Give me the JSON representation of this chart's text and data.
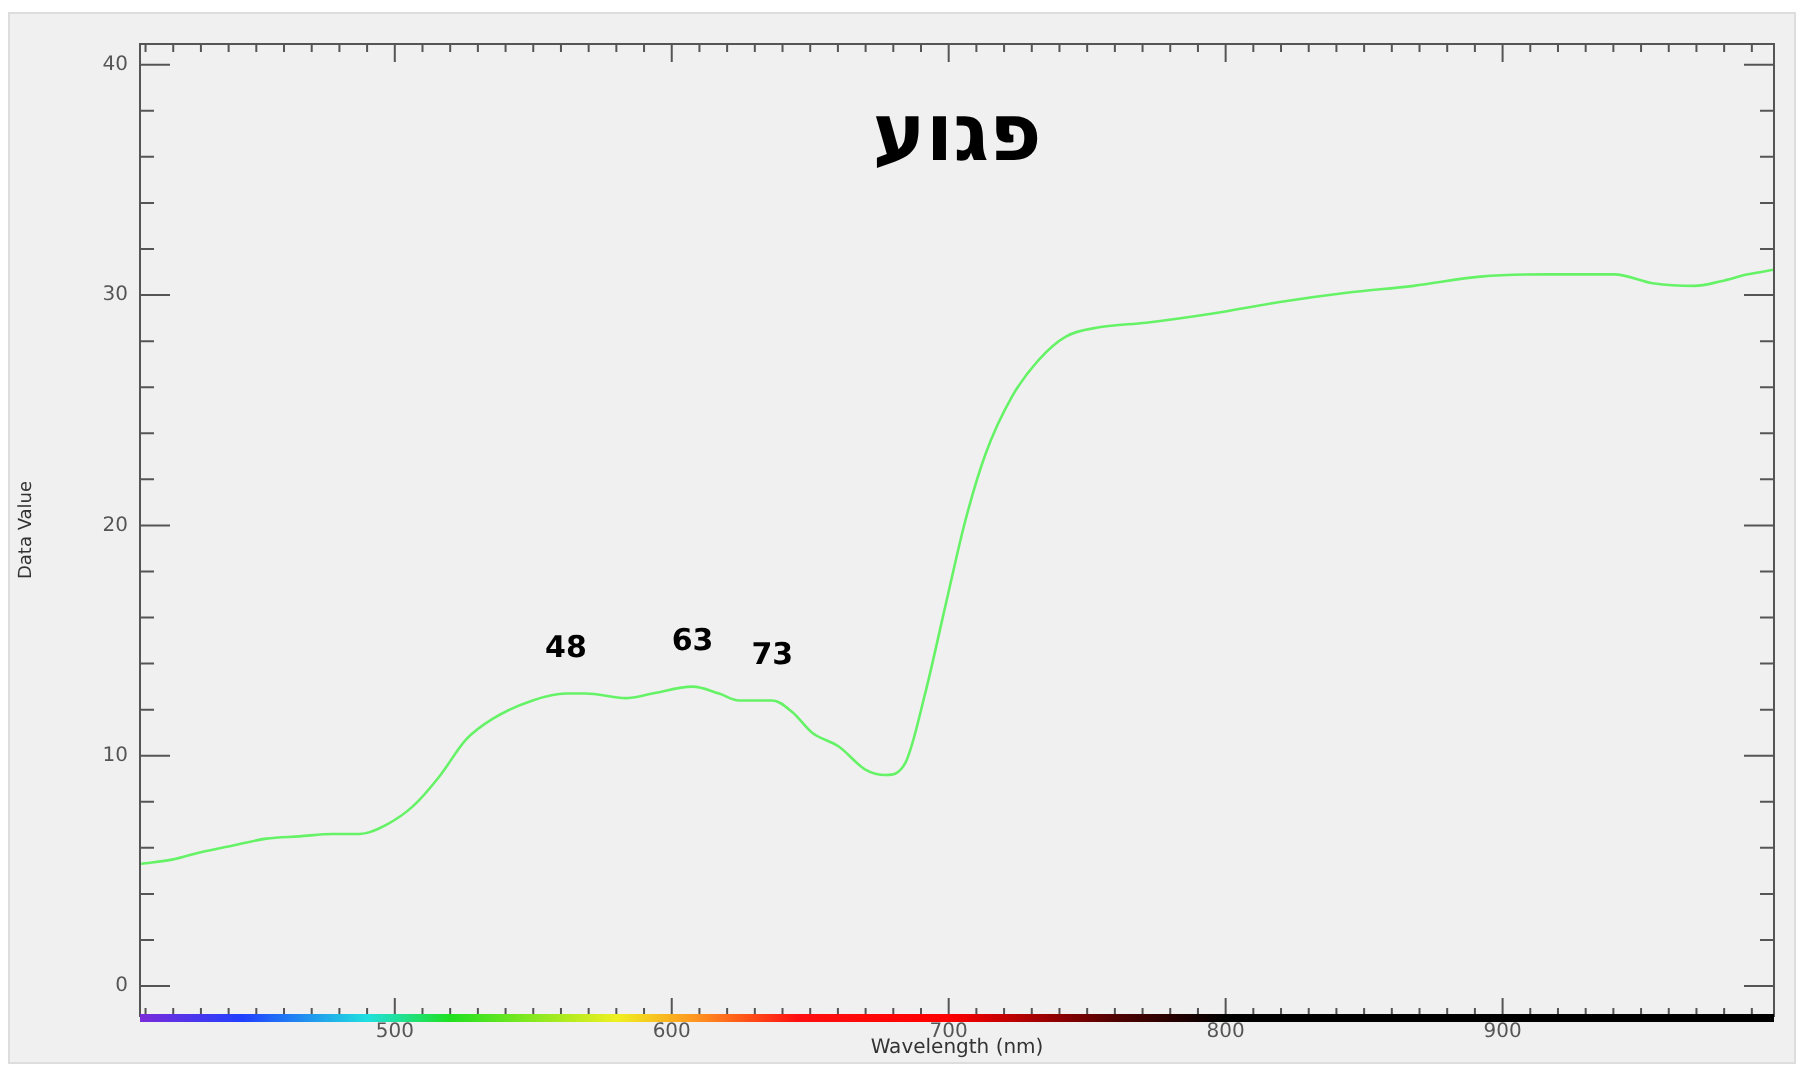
{
  "chart_data": {
    "type": "line",
    "title": "פגוע",
    "xlabel": "Wavelength (nm)",
    "ylabel": "Data Value",
    "x": [
      408.4,
      420,
      429.6,
      441.6,
      453.6,
      465.6,
      477.6,
      487.3,
      496.9,
      506.5,
      516.1,
      525.7,
      535.3,
      549.8,
      561.8,
      569,
      583.4,
      593,
      607.5,
      617.1,
      624.3,
      636.3,
      643.5,
      650.7,
      660.3,
      669.9,
      677.2,
      684.4,
      691.5,
      698.8,
      706,
      713.3,
      722.9,
      732.6,
      742.3,
      754.3,
      771.3,
      795.4,
      819.6,
      843.7,
      867.9,
      892,
      916.2,
      940.3,
      954.8,
      969.3,
      978.9,
      988.6,
      998
    ],
    "values": [
      5.3,
      5.5,
      5.8,
      6.1,
      6.4,
      6.5,
      6.6,
      6.6,
      7.0,
      7.8,
      9.1,
      10.7,
      11.6,
      12.4,
      12.7,
      12.7,
      12.5,
      12.7,
      13.0,
      12.7,
      12.4,
      12.4,
      11.9,
      11.0,
      10.4,
      9.4,
      9.16,
      9.7,
      12.7,
      16.5,
      20.2,
      23.1,
      25.6,
      27.2,
      28.2,
      28.6,
      28.8,
      29.2,
      29.7,
      30.1,
      30.4,
      30.8,
      30.9,
      30.9,
      30.5,
      30.4,
      30.6,
      30.9,
      31.1
    ],
    "color": "#66f266",
    "marker": "none",
    "line_style": "solid",
    "grid": false,
    "legend": false,
    "xlim": [
      408,
      998
    ],
    "ylim": [
      -1.3,
      40.9
    ],
    "xticks": [
      {
        "value": 410,
        "label": null
      },
      {
        "value": 420,
        "label": null
      },
      {
        "value": 430,
        "label": null
      },
      {
        "value": 440,
        "label": null
      },
      {
        "value": 450,
        "label": null
      },
      {
        "value": 460,
        "label": null
      },
      {
        "value": 470,
        "label": null
      },
      {
        "value": 480,
        "label": null
      },
      {
        "value": 490,
        "label": null
      },
      500,
      {
        "value": 510,
        "label": null
      },
      {
        "value": 520,
        "label": null
      },
      {
        "value": 530,
        "label": null
      },
      {
        "value": 540,
        "label": null
      },
      {
        "value": 550,
        "label": null
      },
      {
        "value": 560,
        "label": null
      },
      {
        "value": 570,
        "label": null
      },
      {
        "value": 580,
        "label": null
      },
      {
        "value": 590,
        "label": null
      },
      600,
      {
        "value": 610,
        "label": null
      },
      {
        "value": 620,
        "label": null
      },
      {
        "value": 630,
        "label": null
      },
      {
        "value": 640,
        "label": null
      },
      {
        "value": 650,
        "label": null
      },
      {
        "value": 660,
        "label": null
      },
      {
        "value": 670,
        "label": null
      },
      {
        "value": 680,
        "label": null
      },
      {
        "value": 690,
        "label": null
      },
      700,
      {
        "value": 710,
        "label": null
      },
      {
        "value": 720,
        "label": null
      },
      {
        "value": 730,
        "label": null
      },
      {
        "value": 740,
        "label": null
      },
      {
        "value": 750,
        "label": null
      },
      {
        "value": 760,
        "label": null
      },
      {
        "value": 770,
        "label": null
      },
      {
        "value": 780,
        "label": null
      },
      {
        "value": 790,
        "label": null
      },
      800,
      {
        "value": 810,
        "label": null
      },
      {
        "value": 820,
        "label": null
      },
      {
        "value": 830,
        "label": null
      },
      {
        "value": 840,
        "label": null
      },
      {
        "value": 850,
        "label": null
      },
      {
        "value": 860,
        "label": null
      },
      {
        "value": 870,
        "label": null
      },
      {
        "value": 880,
        "label": null
      },
      {
        "value": 890,
        "label": null
      },
      900,
      {
        "value": 910,
        "label": null
      },
      {
        "value": 920,
        "label": null
      },
      {
        "value": 930,
        "label": null
      },
      {
        "value": 940,
        "label": null
      },
      {
        "value": 950,
        "label": null
      },
      {
        "value": 960,
        "label": null
      },
      {
        "value": 970,
        "label": null
      },
      {
        "value": 980,
        "label": null
      },
      {
        "value": 990,
        "label": null
      }
    ],
    "yticks": [
      0,
      {
        "value": 2,
        "label": null
      },
      {
        "value": 4,
        "label": null
      },
      {
        "value": 6,
        "label": null
      },
      {
        "value": 8,
        "label": null
      },
      10,
      {
        "value": 12,
        "label": null
      },
      {
        "value": 14,
        "label": null
      },
      {
        "value": 16,
        "label": null
      },
      {
        "value": 18,
        "label": null
      },
      20,
      {
        "value": 22,
        "label": null
      },
      {
        "value": 24,
        "label": null
      },
      {
        "value": 26,
        "label": null
      },
      {
        "value": 28,
        "label": null
      },
      30,
      {
        "value": 32,
        "label": null
      },
      {
        "value": 34,
        "label": null
      },
      {
        "value": 36,
        "label": null
      },
      {
        "value": 38,
        "label": null
      },
      40
    ],
    "annotations": [
      {
        "text": "48",
        "x": 561.8,
        "y": 12.7
      },
      {
        "text": "63",
        "x": 607.5,
        "y": 13.0
      },
      {
        "text": "73",
        "x": 636.3,
        "y": 12.4
      }
    ]
  }
}
